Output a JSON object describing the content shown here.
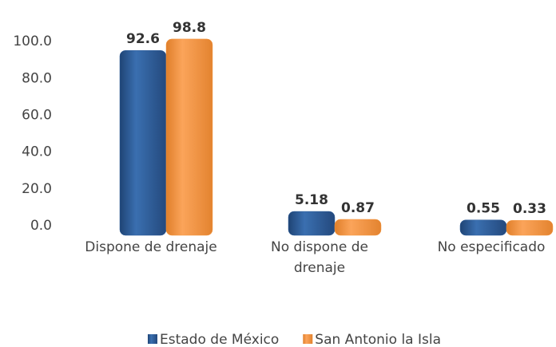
{
  "chart_data": {
    "type": "bar",
    "categories": [
      "Dispone de drenaje",
      "No dispone de drenaje",
      "No especificado"
    ],
    "series": [
      {
        "name": "Estado de México",
        "color": "#2f5f9c",
        "values": [
          92.6,
          5.18,
          0.55
        ]
      },
      {
        "name": "San Antonio la Isla",
        "color": "#f59a45",
        "values": [
          98.8,
          0.87,
          0.33
        ]
      }
    ],
    "ylim": [
      0,
      120
    ],
    "yticks": [
      {
        "value": 0,
        "label": "0.0"
      },
      {
        "value": 20,
        "label": "20.0"
      },
      {
        "value": 40,
        "label": "40.0"
      },
      {
        "value": 60,
        "label": "60.0"
      },
      {
        "value": 80,
        "label": "80.0"
      },
      {
        "value": 100,
        "label": "100.0"
      }
    ],
    "legend": "bottom"
  }
}
